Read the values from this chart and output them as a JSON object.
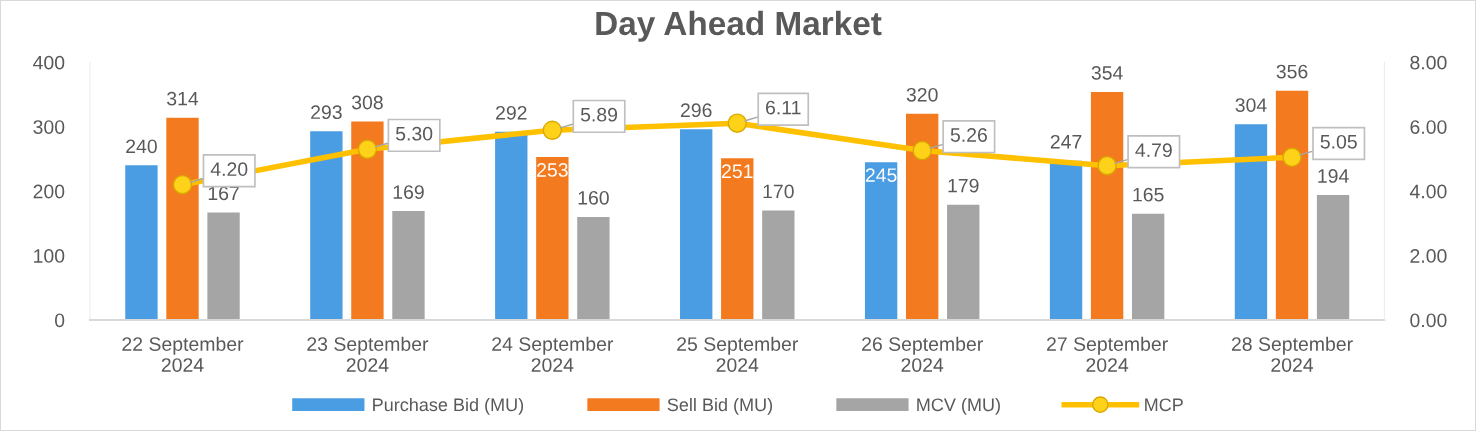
{
  "chart_data": {
    "type": "bar",
    "title": "Day Ahead Market",
    "categories": [
      "22 September\n2024",
      "23 September\n2024",
      "24 September\n2024",
      "25 September\n2024",
      "26 September\n2024",
      "27 September\n2024",
      "28 September\n2024"
    ],
    "series": [
      {
        "name": "Purchase Bid (MU)",
        "color": "#4a9de2",
        "values": [
          240,
          293,
          292,
          296,
          245,
          247,
          304
        ]
      },
      {
        "name": "Sell Bid (MU)",
        "color": "#f47a1f",
        "values": [
          314,
          308,
          253,
          251,
          320,
          354,
          356
        ]
      },
      {
        "name": "MCV (MU)",
        "color": "#a5a5a5",
        "values": [
          167,
          169,
          160,
          170,
          179,
          165,
          194
        ]
      },
      {
        "name": "MCP",
        "type": "line",
        "axis": "y2",
        "color": "#ffc000",
        "marker": "circle",
        "values": [
          4.2,
          5.3,
          5.89,
          6.11,
          5.26,
          4.79,
          5.05
        ],
        "value_labels": [
          "4.20",
          "5.30",
          "5.89",
          "6.11",
          "5.26",
          "4.79",
          "5.05"
        ]
      }
    ],
    "ylim": [
      0,
      400
    ],
    "yticks": [
      0,
      100,
      200,
      300,
      400
    ],
    "y2lim": [
      0,
      8
    ],
    "y2ticks": [
      {
        "value": 0,
        "label": "0.00"
      },
      {
        "value": 2,
        "label": "2.00"
      },
      {
        "value": 4,
        "label": "4.00"
      },
      {
        "value": 6,
        "label": "6.00"
      },
      {
        "value": 8,
        "label": "8.00"
      }
    ],
    "data_labels": true,
    "legend": "bottom",
    "grid": false
  }
}
